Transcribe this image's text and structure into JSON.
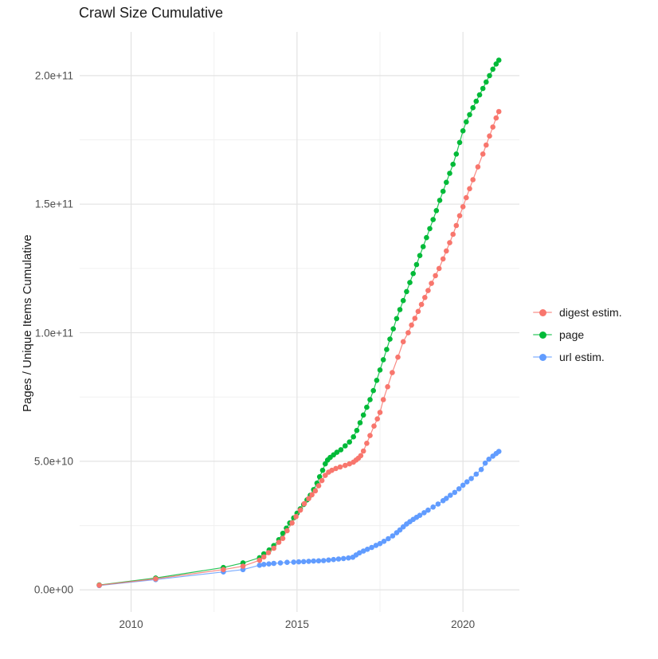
{
  "title": "Crawl Size Cumulative",
  "ylabel": "Pages / Unique Items Cumulative",
  "xlabel": "",
  "colors": {
    "digest": "#F8766D",
    "page": "#00BA38",
    "url": "#619CFF",
    "grid_major": "#E3E3E3",
    "grid_minor": "#F0F0F0",
    "tick_text": "#4D4D4D",
    "text": "#1A1A1A",
    "background": "#FFFFFF"
  },
  "chart_data": {
    "type": "scatter",
    "title": "Crawl Size Cumulative",
    "xlabel": "",
    "ylabel": "Pages / Unique Items Cumulative",
    "grid": true,
    "legend_position": "right",
    "x_axis": {
      "lim": [
        2008.45,
        2021.7
      ],
      "ticks": [
        2010,
        2015,
        2020
      ],
      "tick_labels": [
        "2010",
        "2015",
        "2020"
      ],
      "minor_ticks": [
        2012.5,
        2017.5
      ]
    },
    "y_axis": {
      "lim": [
        -8600000000.0,
        217000000000.0
      ],
      "ticks": [
        0,
        50000000000.0,
        100000000000.0,
        150000000000.0,
        200000000000.0
      ],
      "tick_labels": [
        "0.0e+00",
        "5.0e+10",
        "1.0e+11",
        "1.5e+11",
        "2.0e+11"
      ],
      "minor_ticks": [
        25000000000.0,
        75000000000.0,
        125000000000.0,
        175000000000.0
      ]
    },
    "series": [
      {
        "name": "digest estim.",
        "color": "#F8766D",
        "points": [
          [
            2009.04,
            1800000000.0
          ],
          [
            2010.74,
            4300000000.0
          ],
          [
            2012.78,
            7900000000.0
          ],
          [
            2013.37,
            9200000000.0
          ],
          [
            2013.87,
            11500000000.0
          ],
          [
            2014.0,
            12800000000.0
          ],
          [
            2014.14,
            14500000000.0
          ],
          [
            2014.3,
            16200000000.0
          ],
          [
            2014.45,
            18500000000.0
          ],
          [
            2014.57,
            20000000000.0
          ],
          [
            2014.7,
            23000000000.0
          ],
          [
            2014.85,
            26000000000.0
          ],
          [
            2014.97,
            28500000000.0
          ],
          [
            2015.1,
            31000000000.0
          ],
          [
            2015.22,
            33500000000.0
          ],
          [
            2015.35,
            35500000000.0
          ],
          [
            2015.45,
            37000000000.0
          ],
          [
            2015.55,
            38500000000.0
          ],
          [
            2015.65,
            40500000000.0
          ],
          [
            2015.75,
            42500000000.0
          ],
          [
            2015.85,
            44500000000.0
          ],
          [
            2015.95,
            45800000000.0
          ],
          [
            2016.05,
            46500000000.0
          ],
          [
            2016.17,
            47200000000.0
          ],
          [
            2016.3,
            47800000000.0
          ],
          [
            2016.45,
            48400000000.0
          ],
          [
            2016.58,
            49000000000.0
          ],
          [
            2016.7,
            49700000000.0
          ],
          [
            2016.78,
            50500000000.0
          ],
          [
            2016.85,
            51200000000.0
          ],
          [
            2016.92,
            52200000000.0
          ],
          [
            2017.0,
            54000000000.0
          ],
          [
            2017.1,
            57000000000.0
          ],
          [
            2017.2,
            60000000000.0
          ],
          [
            2017.32,
            63700000000.0
          ],
          [
            2017.42,
            66500000000.0
          ],
          [
            2017.5,
            69000000000.0
          ],
          [
            2017.6,
            74000000000.0
          ],
          [
            2017.73,
            79000000000.0
          ],
          [
            2017.87,
            84500000000.0
          ],
          [
            2018.04,
            90500000000.0
          ],
          [
            2018.2,
            96500000000.0
          ],
          [
            2018.35,
            100000000000.0
          ],
          [
            2018.45,
            103000000000.0
          ],
          [
            2018.55,
            105600000000.0
          ],
          [
            2018.65,
            108300000000.0
          ],
          [
            2018.75,
            111000000000.0
          ],
          [
            2018.85,
            113700000000.0
          ],
          [
            2018.95,
            116400000000.0
          ],
          [
            2019.05,
            119200000000.0
          ],
          [
            2019.17,
            122200000000.0
          ],
          [
            2019.28,
            125000000000.0
          ],
          [
            2019.4,
            128700000000.0
          ],
          [
            2019.5,
            131800000000.0
          ],
          [
            2019.6,
            135000000000.0
          ],
          [
            2019.7,
            138300000000.0
          ],
          [
            2019.8,
            141700000000.0
          ],
          [
            2019.9,
            145500000000.0
          ],
          [
            2020.0,
            149000000000.0
          ],
          [
            2020.1,
            152500000000.0
          ],
          [
            2020.2,
            156000000000.0
          ],
          [
            2020.3,
            159500000000.0
          ],
          [
            2020.45,
            164500000000.0
          ],
          [
            2020.6,
            169500000000.0
          ],
          [
            2020.7,
            173000000000.0
          ],
          [
            2020.8,
            176500000000.0
          ],
          [
            2020.9,
            180000000000.0
          ],
          [
            2021.0,
            183500000000.0
          ],
          [
            2021.08,
            186000000000.0
          ]
        ]
      },
      {
        "name": "page",
        "color": "#00BA38",
        "points": [
          [
            2009.04,
            1900000000.0
          ],
          [
            2010.74,
            4600000000.0
          ],
          [
            2012.78,
            8700000000.0
          ],
          [
            2013.37,
            10500000000.0
          ],
          [
            2013.87,
            12500000000.0
          ],
          [
            2014.0,
            14000000000.0
          ],
          [
            2014.16,
            15500000000.0
          ],
          [
            2014.3,
            17200000000.0
          ],
          [
            2014.45,
            19500000000.0
          ],
          [
            2014.57,
            22000000000.0
          ],
          [
            2014.68,
            24000000000.0
          ],
          [
            2014.78,
            26000000000.0
          ],
          [
            2014.9,
            28000000000.0
          ],
          [
            2015.0,
            29800000000.0
          ],
          [
            2015.1,
            31500000000.0
          ],
          [
            2015.2,
            33200000000.0
          ],
          [
            2015.3,
            35000000000.0
          ],
          [
            2015.4,
            36800000000.0
          ],
          [
            2015.5,
            39000000000.0
          ],
          [
            2015.6,
            41500000000.0
          ],
          [
            2015.68,
            44000000000.0
          ],
          [
            2015.77,
            46500000000.0
          ],
          [
            2015.85,
            49000000000.0
          ],
          [
            2015.92,
            50500000000.0
          ],
          [
            2016.0,
            51500000000.0
          ],
          [
            2016.1,
            52500000000.0
          ],
          [
            2016.2,
            53500000000.0
          ],
          [
            2016.32,
            54500000000.0
          ],
          [
            2016.45,
            56000000000.0
          ],
          [
            2016.58,
            57500000000.0
          ],
          [
            2016.7,
            59500000000.0
          ],
          [
            2016.8,
            62000000000.0
          ],
          [
            2016.9,
            65000000000.0
          ],
          [
            2017.0,
            68000000000.0
          ],
          [
            2017.1,
            71000000000.0
          ],
          [
            2017.2,
            74000000000.0
          ],
          [
            2017.3,
            77500000000.0
          ],
          [
            2017.4,
            81500000000.0
          ],
          [
            2017.5,
            85500000000.0
          ],
          [
            2017.6,
            89500000000.0
          ],
          [
            2017.7,
            93500000000.0
          ],
          [
            2017.8,
            97500000000.0
          ],
          [
            2017.9,
            101500000000.0
          ],
          [
            2018.0,
            105500000000.0
          ],
          [
            2018.1,
            109000000000.0
          ],
          [
            2018.2,
            112500000000.0
          ],
          [
            2018.3,
            116000000000.0
          ],
          [
            2018.4,
            119500000000.0
          ],
          [
            2018.5,
            123000000000.0
          ],
          [
            2018.6,
            126500000000.0
          ],
          [
            2018.7,
            130000000000.0
          ],
          [
            2018.8,
            133500000000.0
          ],
          [
            2018.9,
            137000000000.0
          ],
          [
            2019.0,
            140500000000.0
          ],
          [
            2019.1,
            144000000000.0
          ],
          [
            2019.2,
            147500000000.0
          ],
          [
            2019.3,
            151500000000.0
          ],
          [
            2019.4,
            155000000000.0
          ],
          [
            2019.5,
            158500000000.0
          ],
          [
            2019.6,
            162000000000.0
          ],
          [
            2019.7,
            165500000000.0
          ],
          [
            2019.8,
            169500000000.0
          ],
          [
            2019.9,
            174000000000.0
          ],
          [
            2020.0,
            178500000000.0
          ],
          [
            2020.1,
            182000000000.0
          ],
          [
            2020.2,
            184800000000.0
          ],
          [
            2020.3,
            187500000000.0
          ],
          [
            2020.4,
            190000000000.0
          ],
          [
            2020.5,
            192500000000.0
          ],
          [
            2020.6,
            195000000000.0
          ],
          [
            2020.7,
            197500000000.0
          ],
          [
            2020.8,
            200000000000.0
          ],
          [
            2020.9,
            202500000000.0
          ],
          [
            2021.0,
            204500000000.0
          ],
          [
            2021.08,
            206000000000.0
          ]
        ]
      },
      {
        "name": "url estim.",
        "color": "#619CFF",
        "points": [
          [
            2009.04,
            1700000000.0
          ],
          [
            2010.74,
            4000000000.0
          ],
          [
            2012.78,
            7000000000.0
          ],
          [
            2013.37,
            7900000000.0
          ],
          [
            2013.87,
            9600000000.0
          ],
          [
            2014.0,
            9900000000.0
          ],
          [
            2014.15,
            10100000000.0
          ],
          [
            2014.3,
            10300000000.0
          ],
          [
            2014.5,
            10500000000.0
          ],
          [
            2014.7,
            10700000000.0
          ],
          [
            2014.9,
            10800000000.0
          ],
          [
            2015.05,
            10900000000.0
          ],
          [
            2015.2,
            11000000000.0
          ],
          [
            2015.35,
            11100000000.0
          ],
          [
            2015.5,
            11200000000.0
          ],
          [
            2015.65,
            11300000000.0
          ],
          [
            2015.8,
            11400000000.0
          ],
          [
            2015.95,
            11600000000.0
          ],
          [
            2016.1,
            11800000000.0
          ],
          [
            2016.25,
            12000000000.0
          ],
          [
            2016.4,
            12200000000.0
          ],
          [
            2016.55,
            12400000000.0
          ],
          [
            2016.68,
            12700000000.0
          ],
          [
            2016.78,
            13600000000.0
          ],
          [
            2016.88,
            14400000000.0
          ],
          [
            2017.0,
            15100000000.0
          ],
          [
            2017.12,
            15800000000.0
          ],
          [
            2017.25,
            16500000000.0
          ],
          [
            2017.38,
            17300000000.0
          ],
          [
            2017.5,
            18000000000.0
          ],
          [
            2017.62,
            18900000000.0
          ],
          [
            2017.75,
            19900000000.0
          ],
          [
            2017.88,
            21000000000.0
          ],
          [
            2018.0,
            22200000000.0
          ],
          [
            2018.1,
            23300000000.0
          ],
          [
            2018.2,
            24500000000.0
          ],
          [
            2018.3,
            25600000000.0
          ],
          [
            2018.4,
            26500000000.0
          ],
          [
            2018.5,
            27400000000.0
          ],
          [
            2018.6,
            28200000000.0
          ],
          [
            2018.7,
            29000000000.0
          ],
          [
            2018.83,
            30000000000.0
          ],
          [
            2018.95,
            31000000000.0
          ],
          [
            2019.1,
            32200000000.0
          ],
          [
            2019.25,
            33400000000.0
          ],
          [
            2019.4,
            34700000000.0
          ],
          [
            2019.5,
            35600000000.0
          ],
          [
            2019.62,
            36800000000.0
          ],
          [
            2019.75,
            37900000000.0
          ],
          [
            2019.88,
            39300000000.0
          ],
          [
            2020.0,
            40700000000.0
          ],
          [
            2020.12,
            42000000000.0
          ],
          [
            2020.25,
            43300000000.0
          ],
          [
            2020.4,
            45000000000.0
          ],
          [
            2020.55,
            46800000000.0
          ],
          [
            2020.67,
            49300000000.0
          ],
          [
            2020.78,
            50800000000.0
          ],
          [
            2020.9,
            52000000000.0
          ],
          [
            2021.0,
            53000000000.0
          ],
          [
            2021.08,
            53800000000.0
          ]
        ]
      }
    ]
  }
}
